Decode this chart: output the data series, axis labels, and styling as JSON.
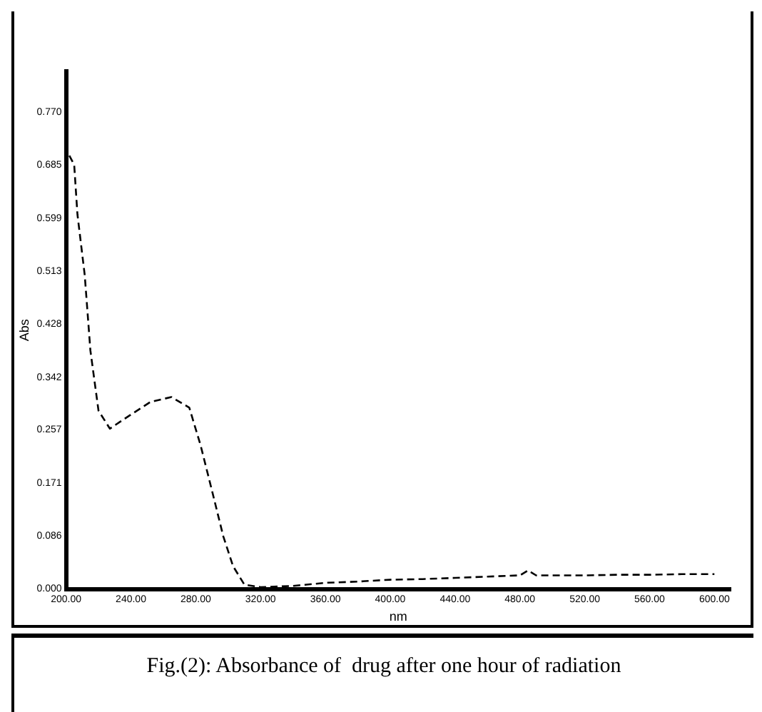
{
  "chart_data": {
    "type": "line",
    "xlabel": "nm",
    "ylabel": "Abs",
    "annotations": [
      "Fig.(2): Absorbance of  drug after one hour of radiation"
    ],
    "x": [
      202,
      205,
      207,
      211.5,
      215,
      220,
      227,
      239,
      252,
      265,
      276,
      283,
      290,
      297,
      303,
      310,
      320,
      340,
      360,
      380,
      400,
      420,
      440,
      460,
      480,
      485,
      490,
      500,
      520,
      540,
      560,
      580,
      600
    ],
    "series": [
      {
        "color": "#000000",
        "values": [
          0.7,
          0.685,
          0.605,
          0.507,
          0.385,
          0.288,
          0.259,
          0.28,
          0.302,
          0.31,
          0.293,
          0.232,
          0.159,
          0.085,
          0.037,
          0.007,
          0.003,
          0.005,
          0.01,
          0.012,
          0.015,
          0.016,
          0.018,
          0.02,
          0.022,
          0.03,
          0.022,
          0.022,
          0.022,
          0.023,
          0.023,
          0.024,
          0.024
        ]
      }
    ],
    "xlim": [
      200,
      610
    ],
    "ylim": [
      0,
      0.836
    ],
    "xticks": [
      {
        "value": 200,
        "label": "200.00"
      },
      {
        "value": 240,
        "label": "240.00"
      },
      {
        "value": 280,
        "label": "280.00"
      },
      {
        "value": 320,
        "label": "320.00"
      },
      {
        "value": 360,
        "label": "360.00"
      },
      {
        "value": 400,
        "label": "400.00"
      },
      {
        "value": 440,
        "label": "440.00"
      },
      {
        "value": 480,
        "label": "480.00"
      },
      {
        "value": 520,
        "label": "520.00"
      },
      {
        "value": 560,
        "label": "560.00"
      },
      {
        "value": 600,
        "label": "600.00"
      }
    ],
    "yticks": [
      {
        "value": 0,
        "label": "0.000"
      },
      0.086,
      0.171,
      0.257,
      0.342,
      0.428,
      0.513,
      0.599,
      0.685,
      {
        "value": 0.77,
        "label": "0.770"
      }
    ],
    "grid": false,
    "legend": false,
    "marker": "none",
    "line_style": "dashed"
  }
}
